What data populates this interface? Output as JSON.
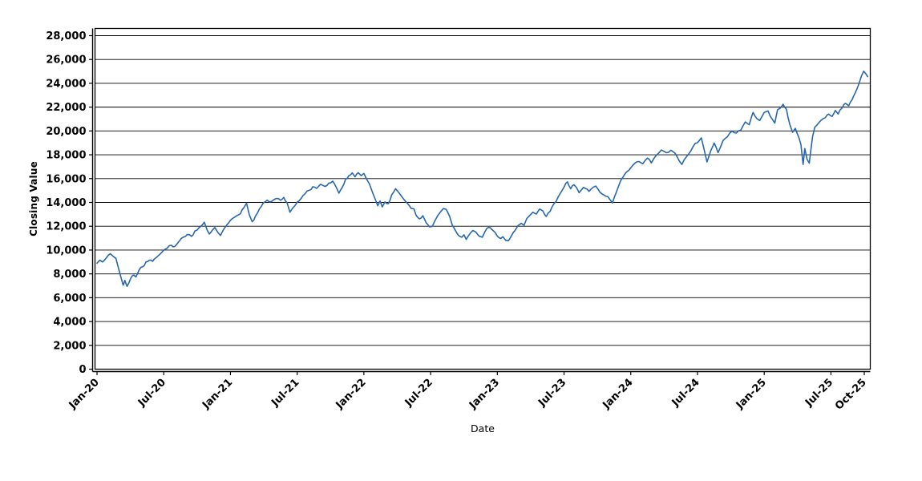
{
  "chart_data": {
    "type": "line",
    "title": "",
    "xlabel": "Date",
    "ylabel": "Closing Value",
    "grid": "horizontal",
    "background": "#ffffff",
    "line_color": "#2667b0",
    "grid_color": "#000000",
    "axis_color": "#000000",
    "text_color": "#000000",
    "xlim": [
      -0.18,
      69.54
    ],
    "ylim": [
      0,
      28605
    ],
    "x_unit": "months since Jan-2020",
    "x_ticks": [
      {
        "m": 0,
        "label": "Jan-20"
      },
      {
        "m": 6,
        "label": "Jul-20"
      },
      {
        "m": 12,
        "label": "Jan-21"
      },
      {
        "m": 18,
        "label": "Jul-21"
      },
      {
        "m": 24,
        "label": "Jan-22"
      },
      {
        "m": 30,
        "label": "Jul-22"
      },
      {
        "m": 36,
        "label": "Jan-23"
      },
      {
        "m": 42,
        "label": "Jul-23"
      },
      {
        "m": 48,
        "label": "Jan-24"
      },
      {
        "m": 54,
        "label": "Jul-24"
      },
      {
        "m": 60,
        "label": "Jan-25"
      },
      {
        "m": 66,
        "label": "Jul-25"
      },
      {
        "m": 69,
        "label": "Oct-25"
      }
    ],
    "y_ticks": [
      0,
      2000,
      4000,
      6000,
      8000,
      10000,
      12000,
      14000,
      16000,
      18000,
      20000,
      22000,
      24000,
      26000,
      28000
    ],
    "y_tick_labels": [
      "0",
      "2,000",
      "4,000",
      "6,000",
      "8,000",
      "10,000",
      "12,000",
      "14,000",
      "16,000",
      "18,000",
      "20,000",
      "22,000",
      "24,000",
      "26,000",
      "28,000"
    ],
    "series": [
      {
        "name": "Closing Value",
        "points": [
          [
            0,
            8900
          ],
          [
            0.25,
            9150
          ],
          [
            0.5,
            9000
          ],
          [
            0.8,
            9300
          ],
          [
            1.0,
            9550
          ],
          [
            1.2,
            9700
          ],
          [
            1.45,
            9480
          ],
          [
            1.7,
            9300
          ],
          [
            1.9,
            8600
          ],
          [
            2.1,
            7900
          ],
          [
            2.35,
            7050
          ],
          [
            2.5,
            7450
          ],
          [
            2.7,
            6950
          ],
          [
            3.0,
            7550
          ],
          [
            3.3,
            7900
          ],
          [
            3.5,
            7750
          ],
          [
            3.8,
            8350
          ],
          [
            4.1,
            8600
          ],
          [
            4.4,
            9000
          ],
          [
            4.7,
            9150
          ],
          [
            5.0,
            9050
          ],
          [
            5.3,
            9350
          ],
          [
            5.6,
            9600
          ],
          [
            6.0,
            9980
          ],
          [
            6.3,
            10150
          ],
          [
            6.7,
            10400
          ],
          [
            7.0,
            10300
          ],
          [
            7.4,
            10750
          ],
          [
            7.8,
            11100
          ],
          [
            8.1,
            11300
          ],
          [
            8.5,
            11150
          ],
          [
            8.8,
            11600
          ],
          [
            9.2,
            11900
          ],
          [
            9.5,
            12150
          ],
          [
            9.65,
            12340
          ],
          [
            9.9,
            11700
          ],
          [
            10.1,
            11350
          ],
          [
            10.4,
            11700
          ],
          [
            10.6,
            11890
          ],
          [
            10.85,
            11500
          ],
          [
            11.1,
            11220
          ],
          [
            11.4,
            11750
          ],
          [
            11.7,
            12150
          ],
          [
            12.0,
            12500
          ],
          [
            12.3,
            12720
          ],
          [
            12.6,
            12900
          ],
          [
            12.9,
            13060
          ],
          [
            13.2,
            13550
          ],
          [
            13.45,
            13930
          ],
          [
            13.7,
            12950
          ],
          [
            13.95,
            12380
          ],
          [
            14.25,
            12850
          ],
          [
            14.6,
            13450
          ],
          [
            14.95,
            13950
          ],
          [
            15.3,
            14180
          ],
          [
            15.7,
            14080
          ],
          [
            16.1,
            14320
          ],
          [
            16.5,
            14180
          ],
          [
            16.8,
            14420
          ],
          [
            17.1,
            13950
          ],
          [
            17.35,
            13180
          ],
          [
            17.6,
            13520
          ],
          [
            18.0,
            14020
          ],
          [
            18.35,
            14320
          ],
          [
            18.7,
            14720
          ],
          [
            19.1,
            15020
          ],
          [
            19.4,
            15320
          ],
          [
            19.75,
            15180
          ],
          [
            20.1,
            15520
          ],
          [
            20.5,
            15340
          ],
          [
            20.85,
            15620
          ],
          [
            21.2,
            15780
          ],
          [
            21.5,
            15300
          ],
          [
            21.75,
            14780
          ],
          [
            22.05,
            15250
          ],
          [
            22.35,
            15950
          ],
          [
            22.65,
            16250
          ],
          [
            22.95,
            16480
          ],
          [
            23.2,
            16150
          ],
          [
            23.5,
            16500
          ],
          [
            23.75,
            16250
          ],
          [
            24.0,
            16430
          ],
          [
            24.25,
            15950
          ],
          [
            24.5,
            15550
          ],
          [
            24.75,
            14900
          ],
          [
            25.05,
            14200
          ],
          [
            25.25,
            13720
          ],
          [
            25.45,
            14120
          ],
          [
            25.65,
            13620
          ],
          [
            25.9,
            14050
          ],
          [
            26.2,
            13900
          ],
          [
            26.5,
            14620
          ],
          [
            26.85,
            15150
          ],
          [
            27.2,
            14750
          ],
          [
            27.6,
            14250
          ],
          [
            27.95,
            13880
          ],
          [
            28.25,
            13500
          ],
          [
            28.5,
            13460
          ],
          [
            28.7,
            12900
          ],
          [
            29.0,
            12620
          ],
          [
            29.3,
            12880
          ],
          [
            29.6,
            12300
          ],
          [
            29.9,
            11950
          ],
          [
            30.15,
            11980
          ],
          [
            30.4,
            12480
          ],
          [
            30.65,
            12900
          ],
          [
            30.9,
            13220
          ],
          [
            31.15,
            13480
          ],
          [
            31.4,
            13420
          ],
          [
            31.7,
            12850
          ],
          [
            31.95,
            12100
          ],
          [
            32.2,
            11700
          ],
          [
            32.5,
            11240
          ],
          [
            32.8,
            11080
          ],
          [
            33.0,
            11280
          ],
          [
            33.2,
            10900
          ],
          [
            33.5,
            11320
          ],
          [
            33.8,
            11640
          ],
          [
            34.1,
            11480
          ],
          [
            34.4,
            11150
          ],
          [
            34.65,
            11080
          ],
          [
            34.9,
            11560
          ],
          [
            35.2,
            11900
          ],
          [
            35.5,
            11740
          ],
          [
            35.8,
            11480
          ],
          [
            36.0,
            11180
          ],
          [
            36.3,
            10970
          ],
          [
            36.5,
            11120
          ],
          [
            36.75,
            10820
          ],
          [
            37.0,
            10780
          ],
          [
            37.3,
            11250
          ],
          [
            37.6,
            11650
          ],
          [
            37.85,
            12050
          ],
          [
            38.15,
            12250
          ],
          [
            38.4,
            12080
          ],
          [
            38.65,
            12650
          ],
          [
            38.9,
            12880
          ],
          [
            39.2,
            13180
          ],
          [
            39.5,
            13020
          ],
          [
            39.8,
            13440
          ],
          [
            40.1,
            13280
          ],
          [
            40.4,
            12820
          ],
          [
            40.75,
            13250
          ],
          [
            41.1,
            13900
          ],
          [
            41.45,
            14420
          ],
          [
            41.75,
            14900
          ],
          [
            42.0,
            15280
          ],
          [
            42.3,
            15720
          ],
          [
            42.6,
            15150
          ],
          [
            42.9,
            15480
          ],
          [
            43.35,
            14820
          ],
          [
            43.75,
            15260
          ],
          [
            44.25,
            14930
          ],
          [
            44.85,
            15370
          ],
          [
            45.45,
            14690
          ],
          [
            45.95,
            14480
          ],
          [
            46.35,
            13960
          ],
          [
            46.7,
            14850
          ],
          [
            47.1,
            15850
          ],
          [
            47.5,
            16420
          ],
          [
            48.0,
            16900
          ],
          [
            48.4,
            17320
          ],
          [
            48.75,
            17430
          ],
          [
            49.1,
            17260
          ],
          [
            49.5,
            17720
          ],
          [
            49.85,
            17320
          ],
          [
            50.3,
            17950
          ],
          [
            50.75,
            18400
          ],
          [
            51.2,
            18180
          ],
          [
            51.6,
            18380
          ],
          [
            52.0,
            18120
          ],
          [
            52.35,
            17500
          ],
          [
            52.6,
            17180
          ],
          [
            53.0,
            17820
          ],
          [
            53.4,
            18320
          ],
          [
            53.8,
            18960
          ],
          [
            54.1,
            19120
          ],
          [
            54.35,
            19420
          ],
          [
            54.6,
            18420
          ],
          [
            54.85,
            17400
          ],
          [
            55.2,
            18350
          ],
          [
            55.5,
            18980
          ],
          [
            55.85,
            18180
          ],
          [
            56.3,
            19200
          ],
          [
            56.7,
            19520
          ],
          [
            57.1,
            19980
          ],
          [
            57.5,
            19820
          ],
          [
            57.9,
            20080
          ],
          [
            58.3,
            20760
          ],
          [
            58.65,
            20520
          ],
          [
            59.0,
            21560
          ],
          [
            59.35,
            21020
          ],
          [
            59.6,
            20880
          ],
          [
            60.0,
            21560
          ],
          [
            60.35,
            21680
          ],
          [
            60.7,
            21020
          ],
          [
            60.95,
            20660
          ],
          [
            61.2,
            21780
          ],
          [
            61.45,
            21920
          ],
          [
            61.7,
            22240
          ],
          [
            62.0,
            21820
          ],
          [
            62.3,
            20550
          ],
          [
            62.55,
            19880
          ],
          [
            62.8,
            20220
          ],
          [
            63.1,
            19500
          ],
          [
            63.3,
            18860
          ],
          [
            63.5,
            17180
          ],
          [
            63.65,
            18520
          ],
          [
            63.85,
            17630
          ],
          [
            64.05,
            17300
          ],
          [
            64.35,
            19520
          ],
          [
            64.55,
            20320
          ],
          [
            64.85,
            20620
          ],
          [
            65.15,
            20920
          ],
          [
            65.5,
            21120
          ],
          [
            65.8,
            21420
          ],
          [
            66.1,
            21220
          ],
          [
            66.4,
            21720
          ],
          [
            66.65,
            21420
          ],
          [
            67.0,
            21920
          ],
          [
            67.3,
            22320
          ],
          [
            67.6,
            22120
          ],
          [
            67.9,
            22620
          ],
          [
            68.2,
            23220
          ],
          [
            68.5,
            23920
          ],
          [
            68.75,
            24620
          ],
          [
            68.95,
            25020
          ],
          [
            69.15,
            24780
          ],
          [
            69.3,
            24560
          ]
        ]
      }
    ]
  }
}
